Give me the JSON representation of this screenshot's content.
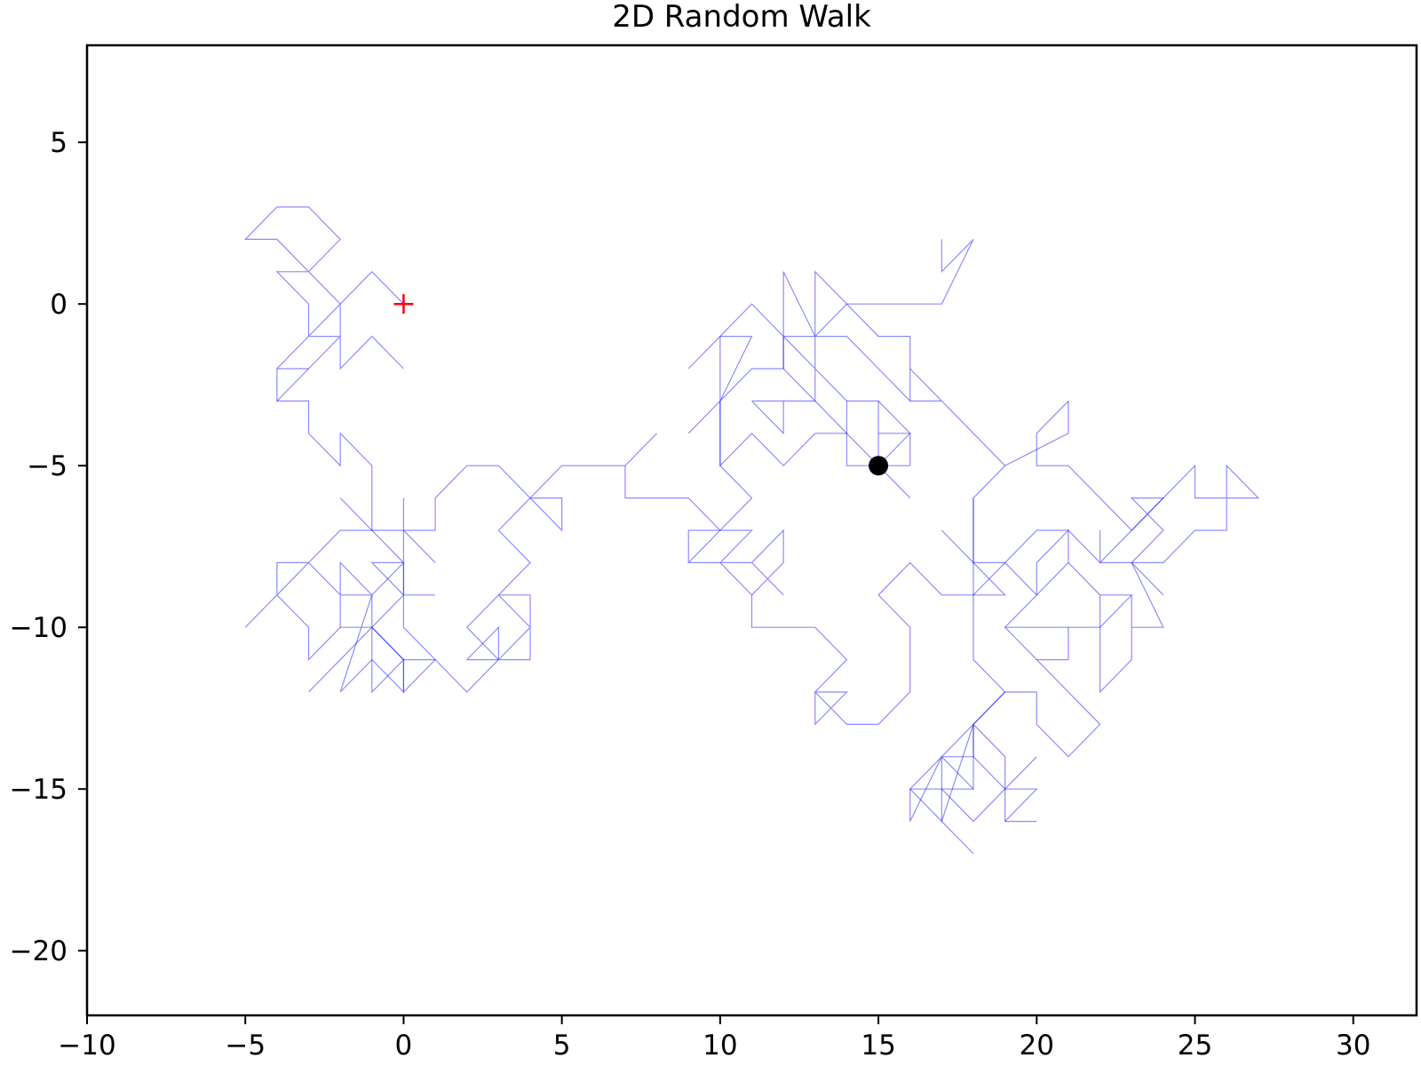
{
  "chart_data": {
    "type": "line",
    "title": "2D Random Walk",
    "xlabel": "",
    "ylabel": "",
    "xlim": [
      -10,
      32
    ],
    "ylim": [
      -22,
      8
    ],
    "xticks": [
      -10,
      -5,
      0,
      5,
      10,
      15,
      20,
      25,
      30
    ],
    "yticks": [
      -20,
      -15,
      -10,
      -5,
      0,
      5
    ],
    "grid": false,
    "colors": {
      "path": "#0000ff",
      "start": "#ff0000",
      "end": "#000000"
    },
    "start": {
      "x": 0,
      "y": 0,
      "marker": "+"
    },
    "end": {
      "x": 15,
      "y": -5,
      "marker": "o"
    },
    "segments": [
      [
        [
          0,
          0
        ],
        [
          -1,
          1
        ],
        [
          -2,
          0
        ],
        [
          -3,
          -1
        ],
        [
          -4,
          -2
        ],
        [
          -4,
          -3
        ],
        [
          -3,
          -2
        ],
        [
          -2,
          -1
        ],
        [
          -2,
          0
        ],
        [
          -3,
          1
        ],
        [
          -4,
          2
        ],
        [
          -5,
          2
        ],
        [
          -4,
          3
        ],
        [
          -3,
          3
        ],
        [
          -2,
          2
        ],
        [
          -3,
          1
        ],
        [
          -4,
          1
        ],
        [
          -3,
          0
        ],
        [
          -3,
          -1
        ],
        [
          -2,
          -1
        ],
        [
          -2,
          -2
        ],
        [
          -1,
          -1
        ],
        [
          0,
          -2
        ]
      ],
      [
        [
          -4,
          -2
        ],
        [
          -3,
          -2
        ]
      ],
      [
        [
          -4,
          -3
        ],
        [
          -3,
          -3
        ],
        [
          -3,
          -4
        ],
        [
          -2,
          -5
        ],
        [
          -2,
          -4
        ],
        [
          -1,
          -5
        ],
        [
          -1,
          -7
        ]
      ],
      [
        [
          -2,
          -6
        ],
        [
          -1,
          -7
        ],
        [
          0,
          -7
        ],
        [
          1,
          -8
        ],
        [
          0,
          -7
        ],
        [
          1,
          -7
        ],
        [
          1,
          -6
        ],
        [
          2,
          -5
        ],
        [
          3,
          -5
        ],
        [
          4,
          -6
        ],
        [
          3,
          -7
        ],
        [
          4,
          -8
        ],
        [
          3,
          -9
        ],
        [
          4,
          -9
        ],
        [
          4,
          -10
        ],
        [
          3,
          -11
        ],
        [
          4,
          -11
        ],
        [
          4,
          -10
        ],
        [
          3,
          -9
        ],
        [
          2,
          -10
        ],
        [
          3,
          -11
        ],
        [
          2,
          -12
        ],
        [
          1,
          -11
        ],
        [
          0,
          -12
        ],
        [
          0,
          -11
        ],
        [
          -1,
          -12
        ],
        [
          -1,
          -10
        ],
        [
          -2,
          -11
        ],
        [
          -3,
          -12
        ],
        [
          -2,
          -11
        ],
        [
          -1,
          -10
        ],
        [
          0,
          -9
        ],
        [
          -1,
          -8
        ],
        [
          0,
          -8
        ],
        [
          0,
          -9
        ],
        [
          1,
          -9
        ]
      ],
      [
        [
          -5,
          -10
        ],
        [
          -4,
          -9
        ],
        [
          -4,
          -8
        ],
        [
          -3,
          -8
        ],
        [
          -2,
          -7
        ],
        [
          -1,
          -7
        ],
        [
          0,
          -8
        ],
        [
          -1,
          -9
        ],
        [
          -2,
          -8
        ],
        [
          -2,
          -10
        ],
        [
          -3,
          -11
        ],
        [
          -3,
          -10
        ],
        [
          -4,
          -9
        ],
        [
          -3,
          -8
        ],
        [
          -2,
          -9
        ],
        [
          -1,
          -9
        ],
        [
          -1,
          -10
        ],
        [
          0,
          -11
        ],
        [
          1,
          -11
        ],
        [
          0,
          -10
        ],
        [
          0,
          -6
        ]
      ],
      [
        [
          -2,
          -10
        ],
        [
          -1,
          -10
        ],
        [
          0,
          -11
        ],
        [
          0,
          -12
        ],
        [
          -1,
          -11
        ],
        [
          -2,
          -12
        ],
        [
          -1,
          -9
        ]
      ],
      [
        [
          3,
          -11
        ],
        [
          2,
          -11
        ],
        [
          3,
          -10
        ],
        [
          3,
          -11
        ]
      ],
      [
        [
          4,
          -6
        ],
        [
          5,
          -6
        ],
        [
          5,
          -7
        ],
        [
          4,
          -6
        ],
        [
          5,
          -5
        ],
        [
          7,
          -5
        ],
        [
          8,
          -4
        ]
      ],
      [
        [
          7,
          -5
        ],
        [
          7,
          -6
        ],
        [
          9,
          -6
        ],
        [
          10,
          -7
        ],
        [
          11,
          -6
        ],
        [
          10,
          -5
        ],
        [
          10,
          -3
        ],
        [
          11,
          -1
        ],
        [
          10,
          -1
        ],
        [
          10,
          -3
        ]
      ],
      [
        [
          9,
          -4
        ],
        [
          11,
          -2
        ],
        [
          12,
          -2
        ],
        [
          12,
          1
        ],
        [
          13,
          -1
        ],
        [
          13,
          1
        ],
        [
          14,
          0
        ],
        [
          17,
          0
        ],
        [
          18,
          2
        ],
        [
          17,
          1
        ],
        [
          17,
          2
        ]
      ],
      [
        [
          9,
          -2
        ],
        [
          10,
          -1
        ],
        [
          11,
          0
        ],
        [
          12,
          -1
        ],
        [
          12,
          -2
        ],
        [
          13,
          -3
        ],
        [
          13,
          -2
        ],
        [
          12,
          -1
        ],
        [
          14,
          -1
        ],
        [
          15,
          -2
        ],
        [
          16,
          -3
        ],
        [
          16,
          -1
        ],
        [
          15,
          -1
        ],
        [
          14,
          0
        ],
        [
          13,
          -1
        ],
        [
          13,
          -2
        ],
        [
          14,
          -3
        ],
        [
          15,
          -3
        ],
        [
          15,
          -5
        ],
        [
          16,
          -6
        ],
        [
          14,
          -4
        ],
        [
          13,
          -4
        ],
        [
          12,
          -5
        ],
        [
          11,
          -4
        ],
        [
          10,
          -5
        ],
        [
          10,
          -3
        ]
      ],
      [
        [
          11,
          -3
        ],
        [
          12,
          -4
        ],
        [
          12,
          -3
        ],
        [
          11,
          -3
        ],
        [
          13,
          -3
        ],
        [
          14,
          -4
        ]
      ],
      [
        [
          14,
          -3
        ],
        [
          14,
          -5
        ],
        [
          15,
          -5
        ],
        [
          16,
          -5
        ],
        [
          16,
          -4
        ],
        [
          15,
          -4
        ]
      ],
      [
        [
          15,
          -5
        ],
        [
          16,
          -4
        ],
        [
          15,
          -3
        ]
      ],
      [
        [
          16,
          -3
        ],
        [
          17,
          -3
        ],
        [
          16,
          -2
        ],
        [
          18,
          -4
        ],
        [
          19,
          -5
        ],
        [
          21,
          -4
        ],
        [
          21,
          -3
        ]
      ],
      [
        [
          19,
          -5
        ],
        [
          18,
          -6
        ],
        [
          18,
          -8
        ],
        [
          19,
          -8
        ],
        [
          20,
          -9
        ],
        [
          21,
          -8
        ],
        [
          21,
          -7
        ],
        [
          22,
          -8
        ],
        [
          22,
          -7
        ]
      ],
      [
        [
          18,
          -6
        ],
        [
          18,
          -11
        ],
        [
          19,
          -12
        ],
        [
          17,
          -14
        ],
        [
          16,
          -15
        ],
        [
          17,
          -16
        ],
        [
          17,
          -14
        ],
        [
          18,
          -15
        ],
        [
          18,
          -13
        ],
        [
          19,
          -14
        ],
        [
          19,
          -16
        ],
        [
          20,
          -16
        ]
      ],
      [
        [
          16,
          -15
        ],
        [
          16,
          -16
        ],
        [
          17,
          -14
        ],
        [
          18,
          -14
        ],
        [
          18,
          -13
        ],
        [
          19,
          -12
        ],
        [
          20,
          -12
        ],
        [
          20,
          -13
        ],
        [
          21,
          -14
        ],
        [
          22,
          -13
        ],
        [
          20,
          -11
        ],
        [
          21,
          -11
        ],
        [
          21,
          -10
        ],
        [
          22,
          -10
        ],
        [
          22,
          -12
        ],
        [
          23,
          -11
        ],
        [
          23,
          -9
        ],
        [
          23,
          -10
        ],
        [
          24,
          -10
        ],
        [
          23,
          -8
        ],
        [
          24,
          -8
        ],
        [
          25,
          -7
        ],
        [
          26,
          -7
        ],
        [
          26,
          -6
        ],
        [
          27,
          -6
        ],
        [
          26,
          -5
        ],
        [
          26,
          -6
        ],
        [
          25,
          -6
        ],
        [
          25,
          -5
        ],
        [
          24,
          -6
        ],
        [
          23,
          -7
        ],
        [
          22,
          -6
        ],
        [
          21,
          -5
        ],
        [
          20,
          -5
        ],
        [
          20,
          -4
        ],
        [
          21,
          -3
        ]
      ],
      [
        [
          18,
          -13
        ],
        [
          17,
          -16
        ],
        [
          18,
          -17
        ]
      ],
      [
        [
          17,
          -15
        ],
        [
          18,
          -16
        ],
        [
          19,
          -15
        ],
        [
          20,
          -15
        ],
        [
          19,
          -16
        ]
      ],
      [
        [
          18,
          -14
        ],
        [
          19,
          -15
        ],
        [
          20,
          -14
        ]
      ],
      [
        [
          16,
          -15
        ],
        [
          18,
          -15
        ]
      ],
      [
        [
          10,
          -7
        ],
        [
          9,
          -8
        ],
        [
          10,
          -8
        ],
        [
          11,
          -9
        ],
        [
          12,
          -8
        ],
        [
          12,
          -7
        ],
        [
          11,
          -8
        ],
        [
          12,
          -9
        ],
        [
          11,
          -8
        ],
        [
          10,
          -8
        ],
        [
          11,
          -7
        ],
        [
          10,
          -7
        ],
        [
          9,
          -7
        ],
        [
          9,
          -8
        ]
      ],
      [
        [
          11,
          -9
        ],
        [
          11,
          -10
        ],
        [
          13,
          -10
        ],
        [
          14,
          -11
        ],
        [
          13,
          -12
        ],
        [
          14,
          -12
        ],
        [
          13,
          -13
        ],
        [
          13,
          -12
        ],
        [
          14,
          -13
        ],
        [
          15,
          -13
        ],
        [
          16,
          -12
        ],
        [
          16,
          -10
        ],
        [
          15,
          -9
        ],
        [
          16,
          -8
        ],
        [
          17,
          -9
        ],
        [
          18,
          -9
        ],
        [
          19,
          -8
        ],
        [
          20,
          -7
        ],
        [
          21,
          -7
        ],
        [
          20,
          -8
        ],
        [
          20,
          -9
        ],
        [
          19,
          -10
        ],
        [
          21,
          -10
        ],
        [
          19,
          -10
        ],
        [
          20,
          -11
        ]
      ],
      [
        [
          18,
          -9
        ],
        [
          19,
          -9
        ],
        [
          18,
          -8
        ],
        [
          17,
          -7
        ]
      ],
      [
        [
          21,
          -8
        ],
        [
          22,
          -9
        ],
        [
          22,
          -10
        ],
        [
          23,
          -9
        ],
        [
          22,
          -9
        ]
      ],
      [
        [
          22,
          -8
        ],
        [
          23,
          -8
        ],
        [
          24,
          -9
        ],
        [
          23,
          -8
        ],
        [
          24,
          -7
        ],
        [
          23,
          -6
        ],
        [
          24,
          -6
        ],
        [
          23,
          -7
        ],
        [
          22,
          -8
        ]
      ]
    ]
  }
}
